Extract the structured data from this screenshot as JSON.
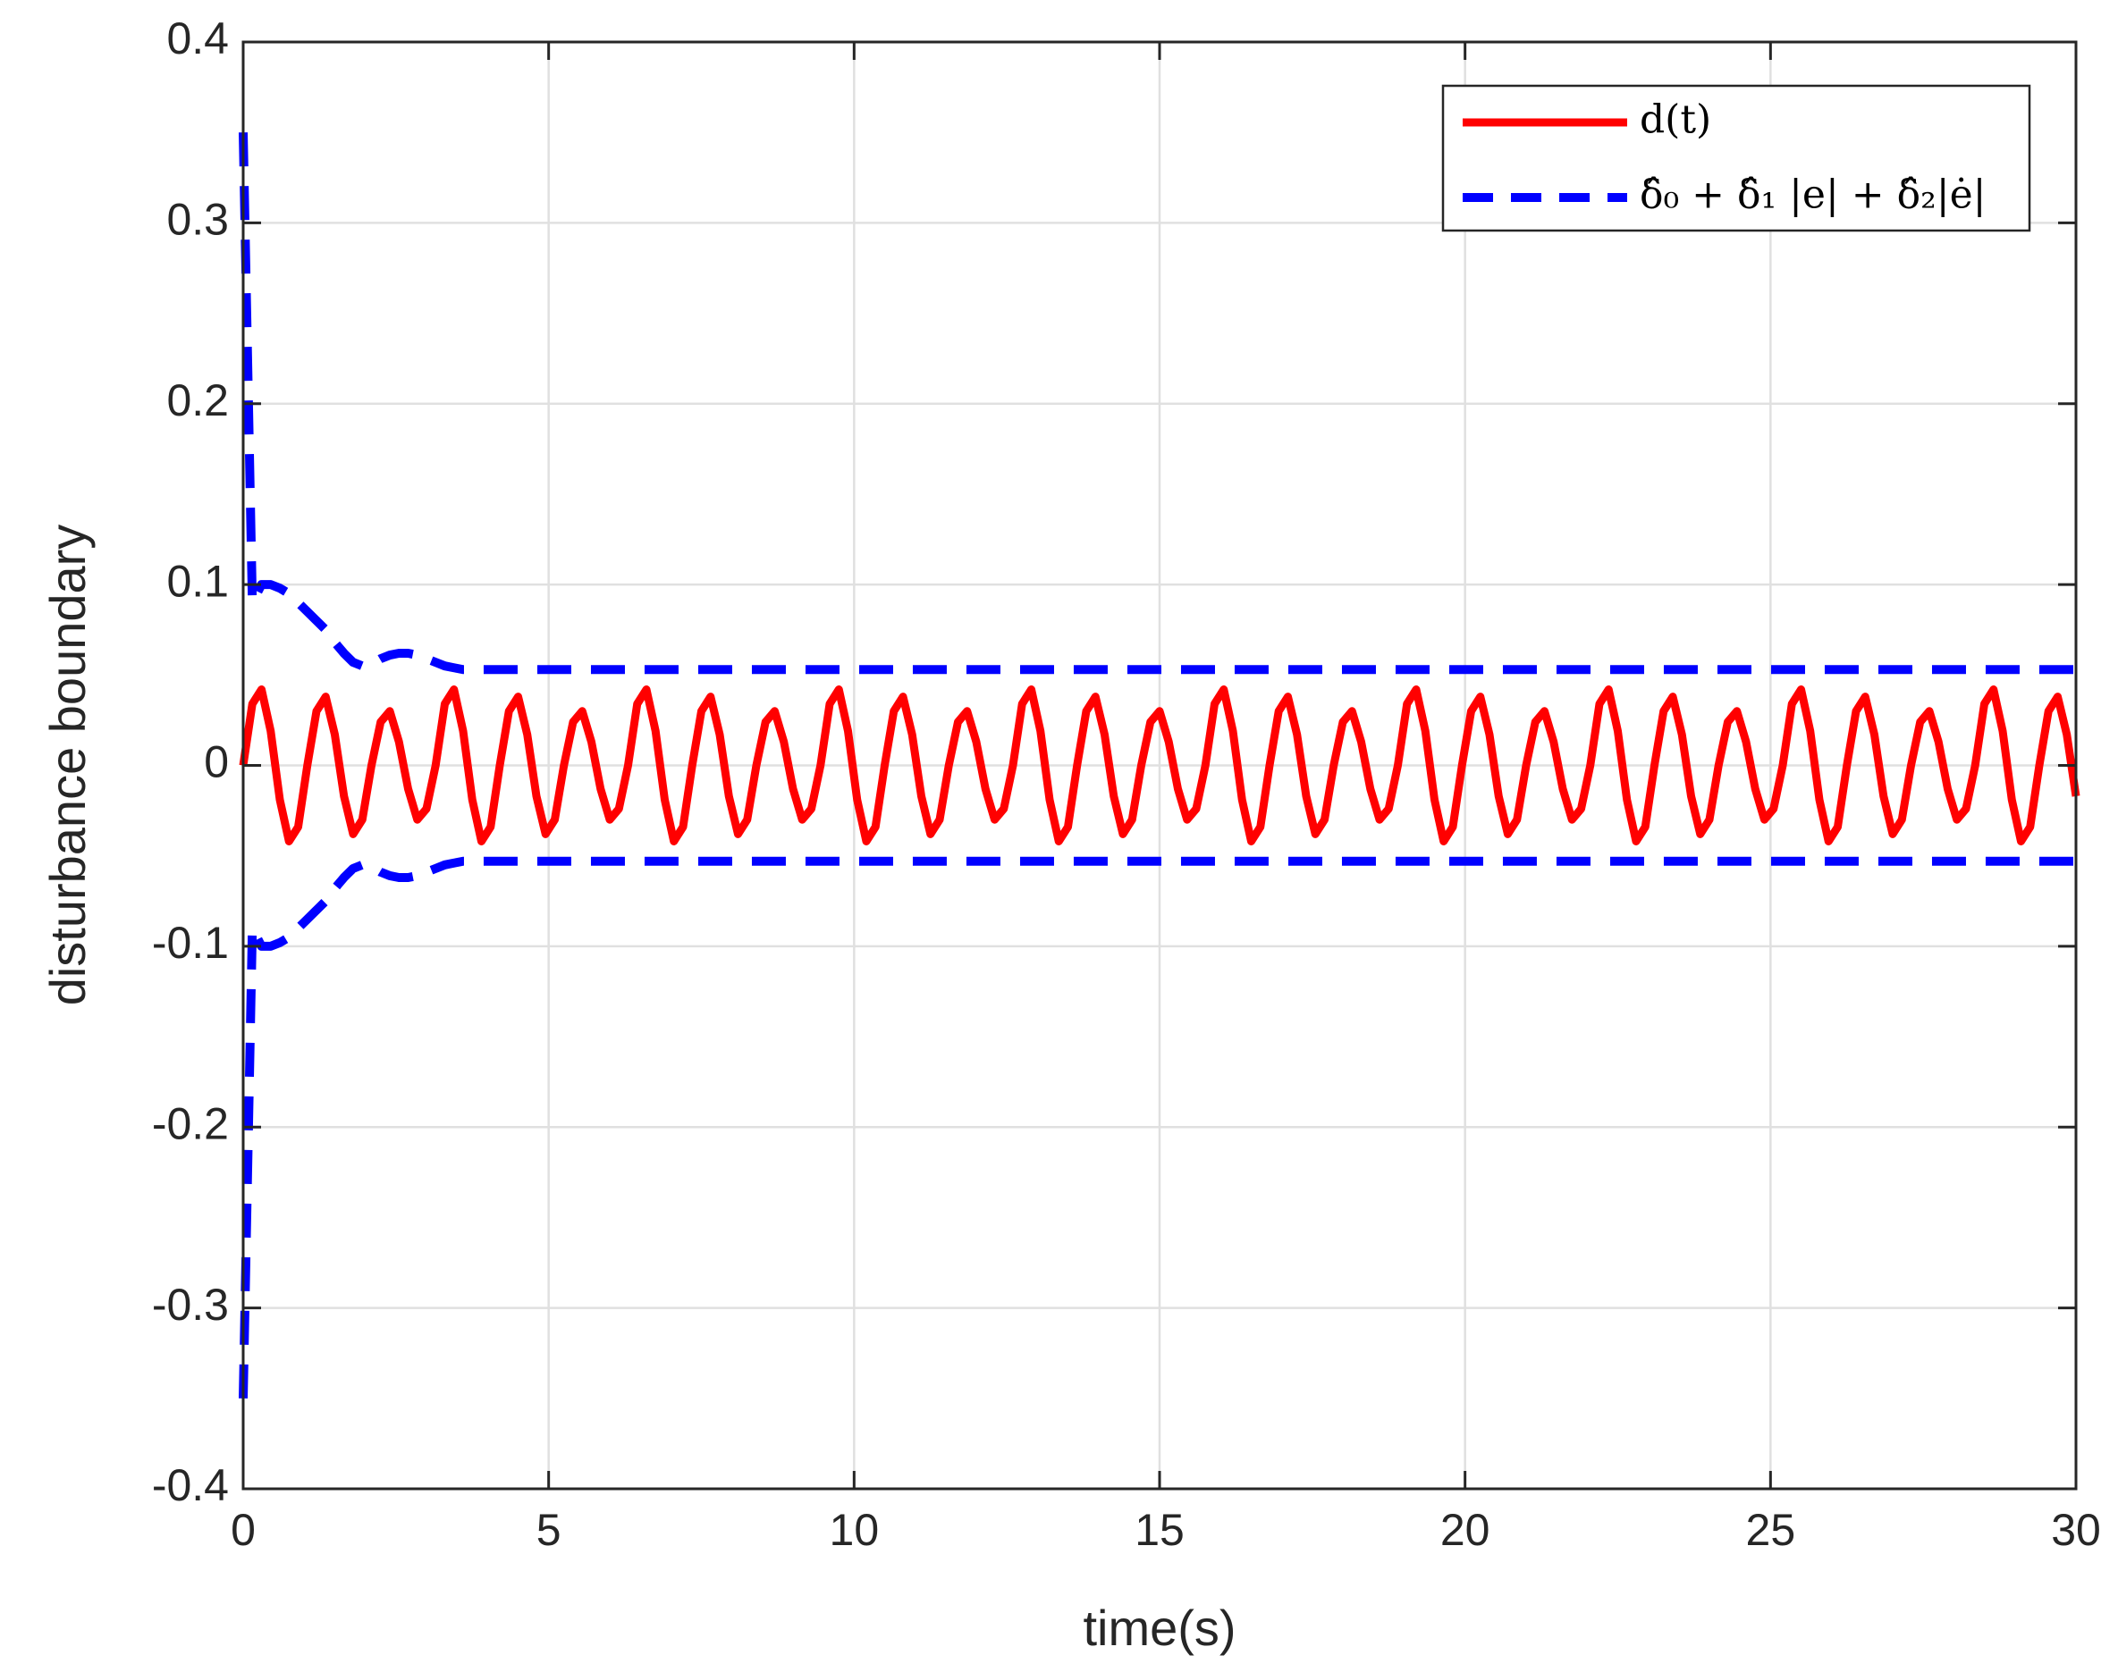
{
  "chart_data": {
    "type": "line",
    "xlabel": "time(s)",
    "ylabel": "disturbance boundary",
    "xlim": [
      0,
      30
    ],
    "ylim": [
      -0.4,
      0.4
    ],
    "xticks": [
      0,
      5,
      10,
      15,
      20,
      25,
      30
    ],
    "yticks": [
      -0.4,
      -0.3,
      -0.2,
      -0.1,
      0,
      0.1,
      0.2,
      0.3,
      0.4
    ],
    "grid": true,
    "legend": "upper right",
    "x": [
      0,
      0.15,
      0.3,
      0.45,
      0.6,
      0.75,
      0.9,
      1.05,
      1.2,
      1.35,
      1.5,
      1.65,
      1.8,
      1.95,
      2.1,
      2.25,
      2.4,
      2.55,
      2.7,
      2.85,
      3,
      3.15,
      3.3,
      3.45,
      3.6,
      3.75,
      3.9,
      4.05,
      4.2,
      4.35,
      4.5,
      4.65,
      4.8,
      4.95,
      5.1,
      5.25,
      5.4,
      5.55,
      5.7,
      5.85,
      6,
      6.15,
      6.3,
      6.45,
      6.6,
      6.75,
      6.9,
      7.05,
      7.2,
      7.35,
      7.5,
      7.65,
      7.8,
      7.95,
      8.1,
      8.25,
      8.4,
      8.55,
      8.7,
      8.85,
      9,
      9.15,
      9.3,
      9.45,
      9.6,
      9.75,
      9.9,
      10.05,
      10.2,
      10.35,
      10.5,
      10.65,
      10.8,
      10.95,
      11.1,
      11.25,
      11.4,
      11.55,
      11.7,
      11.85,
      12,
      12.15,
      12.3,
      12.45,
      12.6,
      12.75,
      12.9,
      13.05,
      13.2,
      13.35,
      13.5,
      13.65,
      13.8,
      13.95,
      14.1,
      14.25,
      14.4,
      14.55,
      14.7,
      14.85,
      15,
      15.15,
      15.3,
      15.45,
      15.6,
      15.75,
      15.9,
      16.05,
      16.2,
      16.35,
      16.5,
      16.65,
      16.8,
      16.95,
      17.1,
      17.25,
      17.4,
      17.55,
      17.7,
      17.85,
      18,
      18.15,
      18.3,
      18.45,
      18.6,
      18.75,
      18.9,
      19.05,
      19.2,
      19.35,
      19.5,
      19.65,
      19.8,
      19.95,
      20.1,
      20.25,
      20.4,
      20.55,
      20.7,
      20.85,
      21,
      21.15,
      21.3,
      21.45,
      21.6,
      21.75,
      21.9,
      22.05,
      22.2,
      22.35,
      22.5,
      22.65,
      22.8,
      22.95,
      23.1,
      23.25,
      23.4,
      23.55,
      23.7,
      23.85,
      24,
      24.15,
      24.3,
      24.45,
      24.6,
      24.75,
      24.9,
      25.05,
      25.2,
      25.35,
      25.5,
      25.65,
      25.8,
      25.95,
      26.1,
      26.25,
      26.4,
      26.55,
      26.7,
      26.85,
      27,
      27.15,
      27.3,
      27.45,
      27.6,
      27.75,
      27.9,
      28.05,
      28.2,
      28.35,
      28.5,
      28.65,
      28.8,
      28.95,
      29.1,
      29.25,
      29.4,
      29.55,
      29.7,
      29.85,
      30
    ],
    "series": [
      {
        "name": "d(t)",
        "color": "#ff0000",
        "style": "solid",
        "values": [
          0,
          0.034,
          0.042,
          0.019,
          -0.019,
          -0.042,
          -0.034,
          0,
          0.03,
          0.038,
          0.017,
          -0.017,
          -0.038,
          -0.03,
          0,
          0.024,
          0.03,
          0.013,
          -0.013,
          -0.03,
          -0.024,
          0,
          0.034,
          0.042,
          0.019,
          -0.019,
          -0.042,
          -0.034,
          0,
          0.03,
          0.038,
          0.017,
          -0.017,
          -0.038,
          -0.03,
          0,
          0.024,
          0.03,
          0.013,
          -0.013,
          -0.03,
          -0.024,
          0,
          0.034,
          0.042,
          0.019,
          -0.019,
          -0.042,
          -0.034,
          0,
          0.03,
          0.038,
          0.017,
          -0.017,
          -0.038,
          -0.03,
          0,
          0.024,
          0.03,
          0.013,
          -0.013,
          -0.03,
          -0.024,
          0,
          0.034,
          0.042,
          0.019,
          -0.019,
          -0.042,
          -0.034,
          0,
          0.03,
          0.038,
          0.017,
          -0.017,
          -0.038,
          -0.03,
          0,
          0.024,
          0.03,
          0.013,
          -0.013,
          -0.03,
          -0.024,
          0,
          0.034,
          0.042,
          0.019,
          -0.019,
          -0.042,
          -0.034,
          0,
          0.03,
          0.038,
          0.017,
          -0.017,
          -0.038,
          -0.03,
          0,
          0.024,
          0.03,
          0.013,
          -0.013,
          -0.03,
          -0.024,
          0,
          0.034,
          0.042,
          0.019,
          -0.019,
          -0.042,
          -0.034,
          0,
          0.03,
          0.038,
          0.017,
          -0.017,
          -0.038,
          -0.03,
          0,
          0.024,
          0.03,
          0.013,
          -0.013,
          -0.03,
          -0.024,
          0,
          0.034,
          0.042,
          0.019,
          -0.019,
          -0.042,
          -0.034,
          0,
          0.03,
          0.038,
          0.017,
          -0.017,
          -0.038,
          -0.03,
          0,
          0.024,
          0.03,
          0.013,
          -0.013,
          -0.03,
          -0.024,
          0,
          0.034,
          0.042,
          0.019,
          -0.019,
          -0.042,
          -0.034,
          0,
          0.03,
          0.038,
          0.017,
          -0.017,
          -0.038,
          -0.03,
          0,
          0.024,
          0.03,
          0.013,
          -0.013,
          -0.03,
          -0.024,
          0,
          0.034,
          0.042,
          0.019,
          -0.019,
          -0.042,
          -0.034,
          0,
          0.03,
          0.038,
          0.017,
          -0.017,
          -0.038,
          -0.03,
          0,
          0.024,
          0.03,
          0.013,
          -0.013,
          -0.03,
          -0.024,
          0,
          0.034,
          0.042,
          0.019,
          -0.019,
          -0.042,
          -0.034,
          0,
          0.03,
          0.038,
          0.017,
          -0.017
        ]
      },
      {
        "name": "δ̂₀ + δ̂₁ |e| + δ̂₂|ė|",
        "color": "#0000ff",
        "style": "dashed",
        "values": [
          0.35,
          0.09,
          0.1,
          0.1,
          0.098,
          0.095,
          0.09,
          0.085,
          0.08,
          0.075,
          0.068,
          0.062,
          0.057,
          0.055,
          0.056,
          0.059,
          0.061,
          0.062,
          0.062,
          0.061,
          0.059,
          0.057,
          0.055,
          0.054,
          0.053,
          0.053,
          0.053,
          0.053,
          0.053,
          0.053,
          0.053,
          0.053,
          0.053,
          0.053,
          0.053,
          0.053,
          0.053,
          0.053,
          0.053,
          0.053,
          0.053,
          0.053,
          0.053,
          0.053,
          0.053,
          0.053,
          0.053,
          0.053,
          0.053,
          0.053,
          0.053,
          0.053,
          0.053,
          0.053,
          0.053,
          0.053,
          0.053,
          0.053,
          0.053,
          0.053,
          0.053,
          0.053,
          0.053,
          0.053,
          0.053,
          0.053,
          0.053,
          0.053,
          0.053,
          0.053,
          0.053,
          0.053,
          0.053,
          0.053,
          0.053,
          0.053,
          0.053,
          0.053,
          0.053,
          0.053,
          0.053,
          0.053,
          0.053,
          0.053,
          0.053,
          0.053,
          0.053,
          0.053,
          0.053,
          0.053,
          0.053,
          0.053,
          0.053,
          0.053,
          0.053,
          0.053,
          0.053,
          0.053,
          0.053,
          0.053,
          0.053,
          0.053,
          0.053,
          0.053,
          0.053,
          0.053,
          0.053,
          0.053,
          0.053,
          0.053,
          0.053,
          0.053,
          0.053,
          0.053,
          0.053,
          0.053,
          0.053,
          0.053,
          0.053,
          0.053,
          0.053,
          0.053,
          0.053,
          0.053,
          0.053,
          0.053,
          0.053,
          0.053,
          0.053,
          0.053,
          0.053,
          0.053,
          0.053,
          0.053,
          0.053,
          0.053,
          0.053,
          0.053,
          0.053,
          0.053,
          0.053,
          0.053,
          0.053,
          0.053,
          0.053,
          0.053,
          0.053,
          0.053,
          0.053,
          0.053,
          0.053,
          0.053,
          0.053,
          0.053,
          0.053,
          0.053,
          0.053,
          0.053,
          0.053,
          0.053,
          0.053,
          0.053,
          0.053,
          0.053,
          0.053,
          0.053,
          0.053,
          0.053,
          0.053,
          0.053,
          0.053,
          0.053,
          0.053,
          0.053,
          0.053,
          0.053,
          0.053,
          0.053,
          0.053,
          0.053,
          0.053,
          0.053,
          0.053,
          0.053,
          0.053,
          0.053,
          0.053,
          0.053,
          0.053,
          0.053,
          0.053,
          0.053,
          0.053,
          0.053,
          0.053,
          0.053,
          0.053,
          0.053,
          0.053,
          0.053,
          0.053
        ],
        "lower_values": [
          -0.35,
          -0.09,
          -0.1,
          -0.1,
          -0.098,
          -0.095,
          -0.09,
          -0.085,
          -0.08,
          -0.075,
          -0.068,
          -0.062,
          -0.057,
          -0.055,
          -0.056,
          -0.059,
          -0.061,
          -0.062,
          -0.062,
          -0.061,
          -0.059,
          -0.057,
          -0.055,
          -0.054,
          -0.053,
          -0.053,
          -0.053,
          -0.053,
          -0.053,
          -0.053,
          -0.053,
          -0.053,
          -0.053,
          -0.053,
          -0.053,
          -0.053,
          -0.053,
          -0.053,
          -0.053,
          -0.053,
          -0.053,
          -0.053,
          -0.053,
          -0.053,
          -0.053,
          -0.053,
          -0.053,
          -0.053,
          -0.053,
          -0.053,
          -0.053,
          -0.053,
          -0.053,
          -0.053,
          -0.053,
          -0.053,
          -0.053,
          -0.053,
          -0.053,
          -0.053,
          -0.053,
          -0.053,
          -0.053,
          -0.053,
          -0.053,
          -0.053,
          -0.053,
          -0.053,
          -0.053,
          -0.053,
          -0.053,
          -0.053,
          -0.053,
          -0.053,
          -0.053,
          -0.053,
          -0.053,
          -0.053,
          -0.053,
          -0.053,
          -0.053,
          -0.053,
          -0.053,
          -0.053,
          -0.053,
          -0.053,
          -0.053,
          -0.053,
          -0.053,
          -0.053,
          -0.053,
          -0.053,
          -0.053,
          -0.053,
          -0.053,
          -0.053,
          -0.053,
          -0.053,
          -0.053,
          -0.053,
          -0.053,
          -0.053,
          -0.053,
          -0.053,
          -0.053,
          -0.053,
          -0.053,
          -0.053,
          -0.053,
          -0.053,
          -0.053,
          -0.053,
          -0.053,
          -0.053,
          -0.053,
          -0.053,
          -0.053,
          -0.053,
          -0.053,
          -0.053,
          -0.053,
          -0.053,
          -0.053,
          -0.053,
          -0.053,
          -0.053,
          -0.053,
          -0.053,
          -0.053,
          -0.053,
          -0.053,
          -0.053,
          -0.053,
          -0.053,
          -0.053,
          -0.053,
          -0.053,
          -0.053,
          -0.053,
          -0.053,
          -0.053,
          -0.053,
          -0.053,
          -0.053,
          -0.053,
          -0.053,
          -0.053,
          -0.053,
          -0.053,
          -0.053,
          -0.053,
          -0.053,
          -0.053,
          -0.053,
          -0.053,
          -0.053,
          -0.053,
          -0.053,
          -0.053,
          -0.053,
          -0.053,
          -0.053,
          -0.053,
          -0.053,
          -0.053,
          -0.053,
          -0.053,
          -0.053,
          -0.053,
          -0.053,
          -0.053,
          -0.053,
          -0.053,
          -0.053,
          -0.053,
          -0.053,
          -0.053,
          -0.053,
          -0.053,
          -0.053,
          -0.053,
          -0.053,
          -0.053,
          -0.053,
          -0.053,
          -0.053,
          -0.053,
          -0.053,
          -0.053,
          -0.053,
          -0.053,
          -0.053,
          -0.053,
          -0.053,
          -0.053,
          -0.053,
          -0.053,
          -0.053,
          -0.053,
          -0.053,
          -0.053
        ]
      }
    ]
  }
}
